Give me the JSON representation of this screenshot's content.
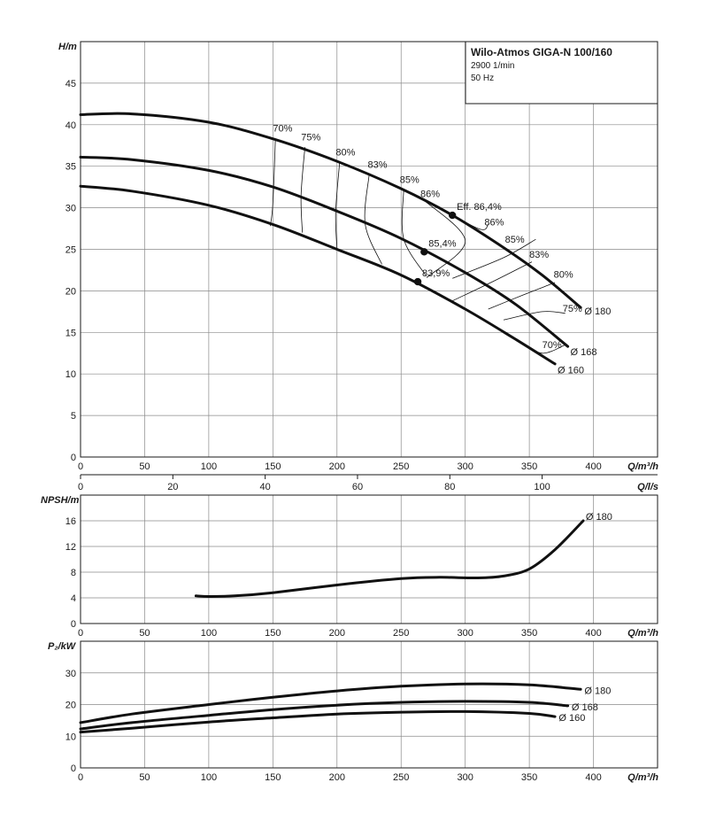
{
  "title_box": {
    "title": "Wilo-Atmos GIGA-N 100/160",
    "speed": "2900 1/min",
    "freq": "50 Hz"
  },
  "chart_data": [
    {
      "id": "head",
      "type": "line",
      "ylabel": "H/m",
      "xlabel": "Q/m³/h",
      "xlim": [
        0,
        450
      ],
      "ylim": [
        0,
        50
      ],
      "xticks": [
        0,
        50,
        100,
        150,
        200,
        250,
        300,
        350,
        400
      ],
      "yticks": [
        0,
        5,
        10,
        15,
        20,
        25,
        30,
        35,
        40,
        45
      ],
      "secondary_x": {
        "label": "Q/l/s",
        "ticks": [
          0,
          20,
          40,
          60,
          80,
          100
        ],
        "factor": 3.6
      },
      "grid": true,
      "series": [
        {
          "name": "Ø 180",
          "x": [
            0,
            40,
            100,
            150,
            200,
            250,
            290,
            330,
            360,
            390
          ],
          "y": [
            41.2,
            41.3,
            40.3,
            38.3,
            35.6,
            32.3,
            29.1,
            25.2,
            21.9,
            18.0
          ]
        },
        {
          "name": "Ø 168",
          "x": [
            0,
            40,
            100,
            150,
            200,
            250,
            300,
            340,
            380
          ],
          "y": [
            36.1,
            35.8,
            34.5,
            32.5,
            29.6,
            26.3,
            22.2,
            18.3,
            13.3
          ]
        },
        {
          "name": "Ø 160",
          "x": [
            0,
            40,
            100,
            150,
            200,
            250,
            300,
            340,
            370
          ],
          "y": [
            32.6,
            32.0,
            30.3,
            28.0,
            25.0,
            21.9,
            17.8,
            14.1,
            11.2
          ]
        }
      ],
      "bep_points": [
        {
          "label": "Eff. 86,4%",
          "x": 290,
          "y": 29.1
        },
        {
          "label": "85,4%",
          "x": 268,
          "y": 24.7
        },
        {
          "label": "83,9%",
          "x": 263,
          "y": 21.1
        }
      ],
      "efficiency_lines": [
        {
          "label": "70%",
          "x": [
            152,
            150,
            148
          ],
          "y": [
            38.3,
            30.5,
            27.8
          ]
        },
        {
          "label": "75%",
          "x": [
            175,
            172,
            173
          ],
          "y": [
            37.3,
            31.5,
            27.0
          ]
        },
        {
          "label": "80%",
          "x": [
            202,
            199,
            200
          ],
          "y": [
            35.4,
            29.5,
            25.0
          ]
        },
        {
          "label": "83%",
          "x": [
            225,
            222,
            235
          ],
          "y": [
            33.9,
            28.0,
            23.2
          ]
        },
        {
          "label": "85%",
          "x": [
            252,
            252,
            269
          ],
          "y": [
            32.1,
            26.3,
            21.9
          ]
        },
        {
          "label": "86%",
          "x": [
            268,
            300,
            270
          ],
          "y": [
            30.9,
            26.0,
            21.6
          ]
        },
        {
          "label": "86%",
          "x": [
            270,
            310,
            318
          ],
          "y": [
            30.9,
            27.5,
            28.0
          ]
        },
        {
          "label": "85%",
          "x": [
            290,
            330,
            355
          ],
          "y": [
            21.5,
            24.0,
            26.2
          ]
        },
        {
          "label": "83%",
          "x": [
            290,
            320,
            352
          ],
          "y": [
            18.8,
            21.0,
            23.5
          ]
        },
        {
          "label": "80%",
          "x": [
            318,
            345,
            370
          ],
          "y": [
            17.8,
            19.5,
            21.0
          ]
        },
        {
          "label": "75%",
          "x": [
            330,
            360,
            378
          ],
          "y": [
            16.5,
            17.5,
            17.3
          ]
        },
        {
          "label": "70%",
          "x": [
            342,
            360,
            378
          ],
          "y": [
            14.0,
            12.5,
            13.5
          ]
        }
      ],
      "eff_labels": [
        {
          "text": "70%",
          "x": 150,
          "y": 39.2
        },
        {
          "text": "75%",
          "x": 172,
          "y": 38.1
        },
        {
          "text": "80%",
          "x": 199,
          "y": 36.3
        },
        {
          "text": "83%",
          "x": 224,
          "y": 34.8
        },
        {
          "text": "85%",
          "x": 249,
          "y": 33.0
        },
        {
          "text": "86%",
          "x": 265,
          "y": 31.3
        },
        {
          "text": "86%",
          "x": 315,
          "y": 27.9
        },
        {
          "text": "85%",
          "x": 331,
          "y": 25.8
        },
        {
          "text": "83%",
          "x": 350,
          "y": 24.0
        },
        {
          "text": "80%",
          "x": 369,
          "y": 21.6
        },
        {
          "text": "75%",
          "x": 376,
          "y": 17.5
        },
        {
          "text": "70%",
          "x": 360,
          "y": 13.1
        }
      ],
      "end_labels": [
        {
          "text": "Ø 180",
          "x": 393,
          "y": 17.6
        },
        {
          "text": "Ø 168",
          "x": 382,
          "y": 12.7
        },
        {
          "text": "Ø 160",
          "x": 372,
          "y": 10.5
        }
      ]
    },
    {
      "id": "npsh",
      "type": "line",
      "ylabel": "NPSH/m",
      "xlabel": "Q/m³/h",
      "xlim": [
        0,
        450
      ],
      "ylim": [
        0,
        20
      ],
      "xticks": [
        0,
        50,
        100,
        150,
        200,
        250,
        300,
        350,
        400
      ],
      "yticks": [
        0,
        4,
        8,
        12,
        16
      ],
      "grid": true,
      "series": [
        {
          "name": "Ø 180",
          "x": [
            90,
            100,
            120,
            150,
            200,
            250,
            280,
            310,
            330,
            350,
            370,
            392
          ],
          "y": [
            4.3,
            4.2,
            4.3,
            4.8,
            6.0,
            7.0,
            7.2,
            7.1,
            7.4,
            8.5,
            11.5,
            16.0
          ]
        }
      ],
      "end_labels": [
        {
          "text": "Ø 180",
          "x": 394,
          "y": 16.7
        }
      ]
    },
    {
      "id": "power",
      "type": "line",
      "ylabel": "P₂/kW",
      "xlabel": "Q/m³/h",
      "xlim": [
        0,
        450
      ],
      "ylim": [
        0,
        40
      ],
      "xticks": [
        0,
        50,
        100,
        150,
        200,
        250,
        300,
        350,
        400
      ],
      "yticks": [
        0,
        10,
        20,
        30
      ],
      "grid": true,
      "series": [
        {
          "name": "Ø 180",
          "x": [
            0,
            40,
            100,
            150,
            200,
            250,
            300,
            350,
            390
          ],
          "y": [
            14.3,
            17.0,
            20.0,
            22.3,
            24.3,
            25.8,
            26.5,
            26.2,
            24.8
          ]
        },
        {
          "name": "Ø 168",
          "x": [
            0,
            40,
            100,
            150,
            200,
            250,
            300,
            350,
            380
          ],
          "y": [
            12.3,
            14.3,
            16.6,
            18.4,
            19.8,
            20.7,
            21.0,
            20.7,
            19.6
          ]
        },
        {
          "name": "Ø 160",
          "x": [
            0,
            40,
            100,
            150,
            200,
            250,
            300,
            350,
            370
          ],
          "y": [
            11.3,
            12.5,
            14.5,
            15.8,
            17.0,
            17.6,
            17.8,
            17.2,
            16.2
          ]
        }
      ],
      "end_labels": [
        {
          "text": "Ø 180",
          "x": 393,
          "y": 24.5
        },
        {
          "text": "Ø 168",
          "x": 383,
          "y": 19.3
        },
        {
          "text": "Ø 160",
          "x": 373,
          "y": 15.9
        }
      ]
    }
  ]
}
